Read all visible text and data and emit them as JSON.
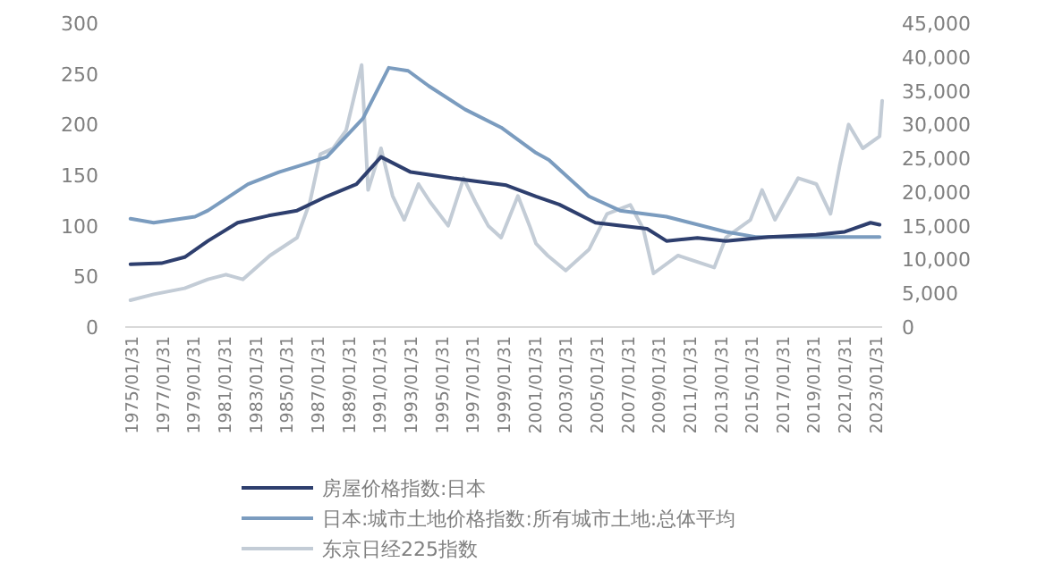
{
  "chart_data": {
    "type": "line",
    "legend": "bottom left",
    "xlim": [
      "1974-09",
      "2023-07"
    ],
    "xticks": [
      {
        "value": "1975-01-31",
        "label": "1975/01/31"
      },
      {
        "value": "1977-01-31",
        "label": "1977/01/31"
      },
      {
        "value": "1979-01-31",
        "label": "1979/01/31"
      },
      {
        "value": "1981-01-31",
        "label": "1981/01/31"
      },
      {
        "value": "1983-01-31",
        "label": "1983/01/31"
      },
      {
        "value": "1985-01-31",
        "label": "1985/01/31"
      },
      {
        "value": "1987-01-31",
        "label": "1987/01/31"
      },
      {
        "value": "1989-01-31",
        "label": "1989/01/31"
      },
      {
        "value": "1991-01-31",
        "label": "1991/01/31"
      },
      {
        "value": "1993-01-31",
        "label": "1993/01/31"
      },
      {
        "value": "1995-01-31",
        "label": "1995/01/31"
      },
      {
        "value": "1997-01-31",
        "label": "1997/01/31"
      },
      {
        "value": "1999-01-31",
        "label": "1999/01/31"
      },
      {
        "value": "2001-01-31",
        "label": "2001/01/31"
      },
      {
        "value": "2003-01-31",
        "label": "2003/01/31"
      },
      {
        "value": "2005-01-31",
        "label": "2005/01/31"
      },
      {
        "value": "2007-01-31",
        "label": "2007/01/31"
      },
      {
        "value": "2009-01-31",
        "label": "2009/01/31"
      },
      {
        "value": "2011-01-31",
        "label": "2011/01/31"
      },
      {
        "value": "2013-01-31",
        "label": "2013/01/31"
      },
      {
        "value": "2015-01-31",
        "label": "2015/01/31"
      },
      {
        "value": "2017-01-31",
        "label": "2017/01/31"
      },
      {
        "value": "2019-01-31",
        "label": "2019/01/31"
      },
      {
        "value": "2021-01-31",
        "label": "2021/01/31"
      },
      {
        "value": "2023-01-31",
        "label": "2023/01/31"
      }
    ],
    "ylim": [
      0,
      300
    ],
    "yticks": [
      0,
      50,
      100,
      150,
      200,
      250,
      300
    ],
    "y2lim": [
      0,
      45000
    ],
    "y2ticks": [
      0,
      {
        "value": 5000,
        "label": "5,000"
      },
      {
        "value": 10000,
        "label": "10,000"
      },
      {
        "value": 15000,
        "label": "15,000"
      },
      {
        "value": 20000,
        "label": "20,000"
      },
      {
        "value": 25000,
        "label": "25,000"
      },
      {
        "value": 30000,
        "label": "30,000"
      },
      {
        "value": 35000,
        "label": "35,000"
      },
      {
        "value": 40000,
        "label": "40,000"
      },
      {
        "value": 45000,
        "label": "45,000"
      }
    ],
    "series": [
      {
        "name": "房屋价格指数:日本",
        "color": "#2e3f6e",
        "x": [
          "1975-01",
          "1977-01",
          "1978-07",
          "1980-01",
          "1981-12",
          "1983-12",
          "1985-10",
          "1987-09",
          "1989-08",
          "1991-03",
          "1993-02",
          "1995-05",
          "1997-04",
          "1999-04",
          "2001-03",
          "2002-09",
          "2005-01",
          "2008-05",
          "2009-08",
          "2011-08",
          "2013-06",
          "2016-03",
          "2019-04",
          "2021-02",
          "2022-10",
          "2023-05"
        ],
        "values": [
          62,
          63,
          69,
          85,
          103,
          110,
          115,
          129,
          141,
          168,
          153,
          148,
          144,
          140,
          129,
          121,
          103,
          97,
          85,
          88,
          85,
          89,
          91,
          94,
          103,
          101
        ]
      },
      {
        "name": "日本:城市土地价格指数:所有城市土地:总体平均",
        "color": "#7b9cbf",
        "x": [
          "1975-01",
          "1976-07",
          "1979-03",
          "1980-01",
          "1982-08",
          "1984-08",
          "1986-07",
          "1987-09",
          "1990-01",
          "1991-09",
          "1992-12",
          "1994-04",
          "1996-08",
          "1998-12",
          "2001-03",
          "2002-01",
          "2004-08",
          "2006-08",
          "2009-08",
          "2013-06",
          "2015-05",
          "2023-05"
        ],
        "values": [
          107,
          103,
          109,
          115,
          141,
          153,
          162,
          168,
          206,
          256,
          253,
          238,
          215,
          197,
          172,
          165,
          129,
          115,
          109,
          94,
          89,
          89
        ]
      },
      {
        "name": "东京日经225指数",
        "color": "#c3ccd6",
        "axis": "y2",
        "x": [
          "1975-01",
          "1976-07",
          "1978-07",
          "1980-01",
          "1981-03",
          "1982-04",
          "1984-01",
          "1985-10",
          "1986-08",
          "1987-04",
          "1988-02",
          "1988-12",
          "1989-12",
          "1990-05",
          "1991-03",
          "1991-12",
          "1992-09",
          "1993-08",
          "1994-05",
          "1995-07",
          "1996-07",
          "1997-04",
          "1998-02",
          "1998-12",
          "2000-01",
          "2000-10",
          "2001-03",
          "2001-12",
          "2003-02",
          "2004-08",
          "2005-10",
          "2007-04",
          "2008-02",
          "2008-10",
          "2010-05",
          "2012-09",
          "2013-06",
          "2015-01",
          "2015-10",
          "2016-08",
          "2018-02",
          "2019-04",
          "2020-03",
          "2020-10",
          "2021-05",
          "2022-04",
          "2023-05",
          "2023-07"
        ],
        "values": [
          3970,
          4850,
          5740,
          7060,
          7760,
          7060,
          10590,
          13240,
          18530,
          25590,
          26470,
          29120,
          38820,
          20300,
          26470,
          19410,
          15880,
          21180,
          18530,
          15000,
          22060,
          18530,
          15000,
          13240,
          19410,
          15000,
          12350,
          10590,
          8380,
          11470,
          16770,
          18090,
          14560,
          7940,
          10590,
          8820,
          13240,
          15880,
          20300,
          15880,
          22060,
          21180,
          16770,
          23820,
          30000,
          26470,
          28240,
          33530
        ]
      }
    ]
  }
}
